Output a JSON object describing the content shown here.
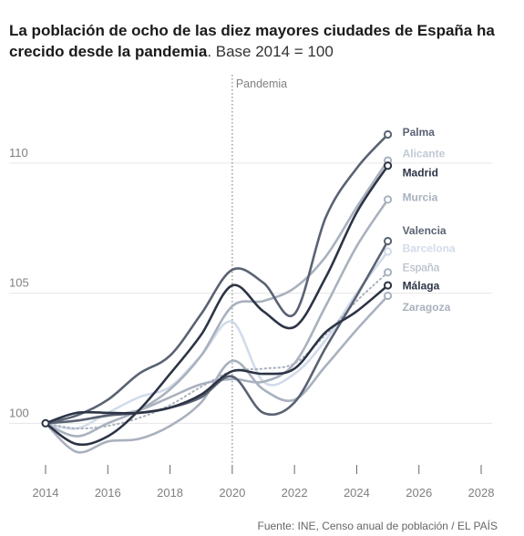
{
  "title": {
    "bold": "La población de ocho de las diez mayores ciudades de España ha crecido desde la pandemia",
    "light": ". Base 2014 = 100"
  },
  "source": "Fuente: INE, Censo anual de población / EL PAÍS",
  "colors": {
    "dark": "#2c3445",
    "mid": "#5a6273",
    "light": "#a9b1be",
    "pale": "#d2dbea",
    "grid": "#e6e6e6",
    "axis_text": "#808080"
  },
  "chart_data": {
    "type": "line",
    "xlim": [
      2014,
      2028
    ],
    "ylim": [
      98.4,
      113.5
    ],
    "x_ticks": [
      2014,
      2016,
      2018,
      2020,
      2022,
      2024,
      2026,
      2028
    ],
    "y_ticks": [
      100,
      105,
      110
    ],
    "annotation": {
      "x": 2020,
      "label": "Pandemia"
    },
    "series": [
      {
        "name": "Palma",
        "color": "#5a6273",
        "label_color": "#5a6273",
        "bold": true,
        "dotted": false,
        "points": [
          [
            2014,
            100
          ],
          [
            2015,
            100.3
          ],
          [
            2016,
            100.9
          ],
          [
            2017,
            101.9
          ],
          [
            2018,
            102.6
          ],
          [
            2019,
            104.2
          ],
          [
            2020,
            105.9
          ],
          [
            2021,
            105.4
          ],
          [
            2022,
            104.2
          ],
          [
            2023,
            107.9
          ],
          [
            2024,
            109.8
          ],
          [
            2025,
            111.1
          ]
        ]
      },
      {
        "name": "Alicante",
        "color": "#a9b1be",
        "label_color": "#c0c9d6",
        "bold": true,
        "dotted": false,
        "points": [
          [
            2014,
            100
          ],
          [
            2015,
            99.5
          ],
          [
            2016,
            100
          ],
          [
            2017,
            100.5
          ],
          [
            2018,
            101.3
          ],
          [
            2019,
            102.6
          ],
          [
            2020,
            104.5
          ],
          [
            2021,
            104.7
          ],
          [
            2022,
            105.2
          ],
          [
            2023,
            106.4
          ],
          [
            2024,
            108.3
          ],
          [
            2025,
            110.1
          ]
        ]
      },
      {
        "name": "Madrid",
        "color": "#2c3445",
        "label_color": "#2c3445",
        "bold": true,
        "dotted": false,
        "points": [
          [
            2014,
            100
          ],
          [
            2015,
            99.2
          ],
          [
            2016,
            99.5
          ],
          [
            2017,
            100.5
          ],
          [
            2018,
            101.9
          ],
          [
            2019,
            103.4
          ],
          [
            2020,
            105.3
          ],
          [
            2021,
            104.3
          ],
          [
            2022,
            103.7
          ],
          [
            2023,
            105.6
          ],
          [
            2024,
            108.1
          ],
          [
            2025,
            109.9
          ]
        ]
      },
      {
        "name": "Murcia",
        "color": "#a9b1be",
        "label_color": "#a9b1be",
        "bold": true,
        "dotted": false,
        "points": [
          [
            2014,
            100
          ],
          [
            2015,
            100.1
          ],
          [
            2016,
            100.3
          ],
          [
            2017,
            100.5
          ],
          [
            2018,
            101
          ],
          [
            2019,
            101.5
          ],
          [
            2020,
            101.7
          ],
          [
            2021,
            101.6
          ],
          [
            2022,
            102.3
          ],
          [
            2023,
            104.5
          ],
          [
            2024,
            106.8
          ],
          [
            2025,
            108.6
          ]
        ]
      },
      {
        "name": "Valencia",
        "color": "#5a6273",
        "label_color": "#5a6273",
        "bold": true,
        "dotted": false,
        "points": [
          [
            2014,
            100
          ],
          [
            2015,
            100.1
          ],
          [
            2016,
            100.3
          ],
          [
            2017,
            100.4
          ],
          [
            2018,
            100.6
          ],
          [
            2019,
            101
          ],
          [
            2020,
            101.8
          ],
          [
            2021,
            100.4
          ],
          [
            2022,
            100.8
          ],
          [
            2023,
            102.9
          ],
          [
            2024,
            104.9
          ],
          [
            2025,
            107
          ]
        ]
      },
      {
        "name": "Barcelona",
        "color": "#d2dbea",
        "label_color": "#d2dbea",
        "bold": true,
        "dotted": false,
        "points": [
          [
            2014,
            100
          ],
          [
            2015,
            99.8
          ],
          [
            2016,
            100.4
          ],
          [
            2017,
            101
          ],
          [
            2018,
            101.4
          ],
          [
            2019,
            102.6
          ],
          [
            2020,
            103.9
          ],
          [
            2021,
            101.6
          ],
          [
            2022,
            101.9
          ],
          [
            2023,
            103.2
          ],
          [
            2024,
            105
          ],
          [
            2025,
            106.6
          ]
        ]
      },
      {
        "name": "España",
        "color": "#a9b1be",
        "label_color": "#a9b1be",
        "bold": false,
        "dotted": true,
        "points": [
          [
            2014,
            100
          ],
          [
            2015,
            99.8
          ],
          [
            2016,
            99.9
          ],
          [
            2017,
            100.2
          ],
          [
            2018,
            100.7
          ],
          [
            2019,
            101.4
          ],
          [
            2020,
            102
          ],
          [
            2021,
            102.1
          ],
          [
            2022,
            102.3
          ],
          [
            2023,
            103.4
          ],
          [
            2024,
            104.7
          ],
          [
            2025,
            105.8
          ]
        ]
      },
      {
        "name": "Málaga",
        "color": "#2c3445",
        "label_color": "#2c3445",
        "bold": true,
        "dotted": false,
        "points": [
          [
            2014,
            100
          ],
          [
            2015,
            100.4
          ],
          [
            2016,
            100.4
          ],
          [
            2017,
            100.4
          ],
          [
            2018,
            100.6
          ],
          [
            2019,
            101.1
          ],
          [
            2020,
            102
          ],
          [
            2021,
            101.9
          ],
          [
            2022,
            102.1
          ],
          [
            2023,
            103.5
          ],
          [
            2024,
            104.3
          ],
          [
            2025,
            105.3
          ]
        ]
      },
      {
        "name": "Zaragoza",
        "color": "#a9b1be",
        "label_color": "#a9b1be",
        "bold": true,
        "dotted": false,
        "points": [
          [
            2014,
            100
          ],
          [
            2015,
            98.9
          ],
          [
            2016,
            99.3
          ],
          [
            2017,
            99.4
          ],
          [
            2018,
            99.9
          ],
          [
            2019,
            100.8
          ],
          [
            2020,
            102.4
          ],
          [
            2021,
            101.3
          ],
          [
            2022,
            100.9
          ],
          [
            2023,
            102.2
          ],
          [
            2024,
            103.6
          ],
          [
            2025,
            104.9
          ]
        ]
      }
    ]
  }
}
